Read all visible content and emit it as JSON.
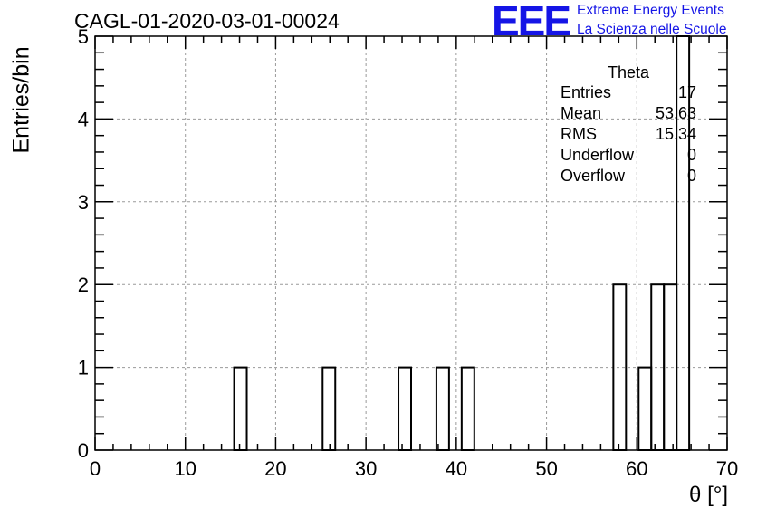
{
  "title": "CAGL-01-2020-03-01-00024",
  "logo": {
    "mark": "EEE",
    "line1": "Extreme Energy Events",
    "line2": "La Scienza nelle Scuole",
    "color": "#1515e6"
  },
  "stats_box": {
    "name": "Theta",
    "rows": [
      {
        "label": "Entries",
        "value": "17"
      },
      {
        "label": "Mean",
        "value": "53.63"
      },
      {
        "label": "RMS",
        "value": "15.34"
      },
      {
        "label": "Underflow",
        "value": "0"
      },
      {
        "label": "Overflow",
        "value": "0"
      }
    ]
  },
  "chart_data": {
    "type": "bar",
    "style": "step-histogram",
    "title": "CAGL-01-2020-03-01-00024",
    "xlabel": "θ [°]",
    "ylabel": "Entries/bin",
    "xlim": [
      0,
      70
    ],
    "ylim": [
      0,
      5
    ],
    "bin_width": 1.4,
    "x_ticks": [
      0,
      10,
      20,
      30,
      40,
      50,
      60,
      70
    ],
    "y_ticks": [
      0,
      1,
      2,
      3,
      4,
      5
    ],
    "grid": true,
    "bins": [
      {
        "x0": 15.4,
        "x1": 16.8,
        "value": 1
      },
      {
        "x0": 25.2,
        "x1": 26.6,
        "value": 1
      },
      {
        "x0": 33.6,
        "x1": 35.0,
        "value": 1
      },
      {
        "x0": 37.8,
        "x1": 39.2,
        "value": 1
      },
      {
        "x0": 40.6,
        "x1": 42.0,
        "value": 1
      },
      {
        "x0": 57.4,
        "x1": 58.8,
        "value": 2
      },
      {
        "x0": 60.2,
        "x1": 61.6,
        "value": 1
      },
      {
        "x0": 61.6,
        "x1": 63.0,
        "value": 2
      },
      {
        "x0": 63.0,
        "x1": 64.4,
        "value": 2
      },
      {
        "x0": 64.4,
        "x1": 65.8,
        "value": 5
      }
    ]
  }
}
